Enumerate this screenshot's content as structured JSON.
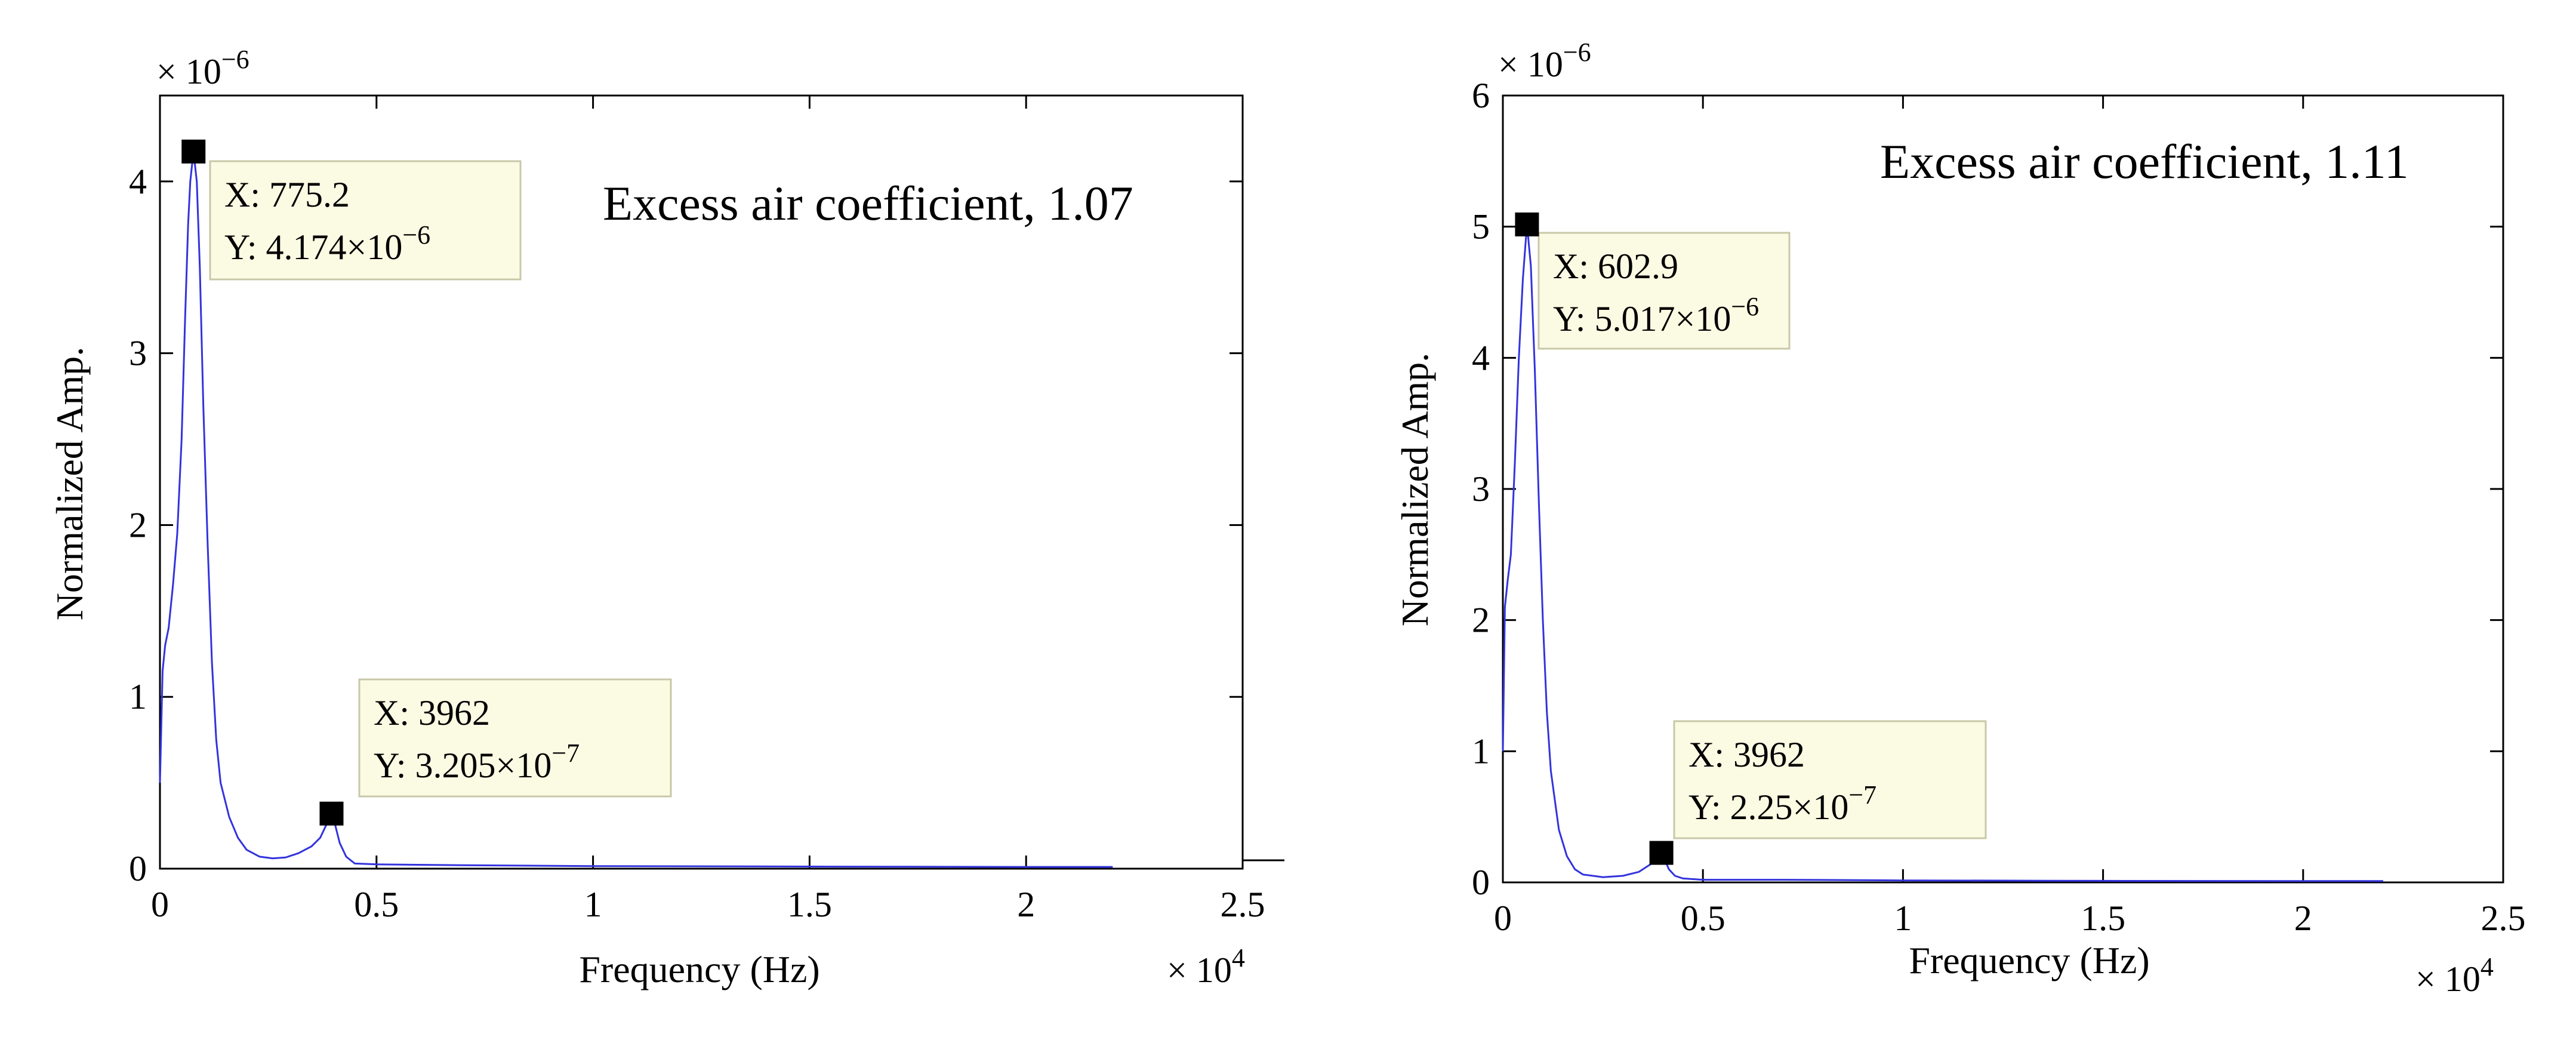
{
  "chart_data": [
    {
      "type": "line",
      "title": "",
      "annotation": "Excess air coefficient, 1.07",
      "xlabel": "Frequency (Hz)",
      "ylabel": "Normalized Amp.",
      "xlim": [
        0,
        2.5
      ],
      "ylim": [
        0,
        4.5
      ],
      "x_multiplier": "× 10",
      "x_multiplier_exp": "4",
      "y_multiplier": "× 10",
      "y_multiplier_exp": "−6",
      "x_ticks": [
        0,
        0.5,
        1,
        1.5,
        2,
        2.5
      ],
      "x_tick_labels": [
        "0",
        "0.5",
        "1",
        "1.5",
        "2",
        "2.5"
      ],
      "y_ticks": [
        0,
        1,
        2,
        3,
        4
      ],
      "y_tick_labels": [
        "0",
        "1",
        "2",
        "3",
        "4"
      ],
      "series": [
        {
          "name": "spectrum",
          "color": "#3333dd",
          "x": [
            0,
            0.006,
            0.012,
            0.02,
            0.03,
            0.04,
            0.05,
            0.058,
            0.065,
            0.07,
            0.0775,
            0.085,
            0.092,
            0.1,
            0.11,
            0.12,
            0.13,
            0.14,
            0.16,
            0.18,
            0.2,
            0.23,
            0.26,
            0.29,
            0.32,
            0.35,
            0.37,
            0.385,
            0.3962,
            0.405,
            0.415,
            0.43,
            0.45,
            0.5,
            0.7,
            1.0,
            1.5,
            2.0,
            2.2
          ],
          "y": [
            0.5,
            1.15,
            1.3,
            1.4,
            1.65,
            1.95,
            2.5,
            3.2,
            3.75,
            4.0,
            4.174,
            4.0,
            3.5,
            2.7,
            1.9,
            1.2,
            0.75,
            0.5,
            0.3,
            0.18,
            0.11,
            0.07,
            0.06,
            0.065,
            0.09,
            0.13,
            0.18,
            0.26,
            0.3205,
            0.25,
            0.15,
            0.07,
            0.03,
            0.025,
            0.02,
            0.015,
            0.012,
            0.01,
            0.01
          ]
        }
      ],
      "datatips": [
        {
          "x": 775.2,
          "x_scaled": 0.07752,
          "y": 4.174,
          "label_x": "X: 775.2",
          "label_y": "Y: 4.174×10",
          "label_y_exp": "−6"
        },
        {
          "x": 3962,
          "x_scaled": 0.3962,
          "y": 0.3205,
          "label_x": "X: 3962",
          "label_y": "Y: 3.205×10",
          "label_y_exp": "−7"
        }
      ]
    },
    {
      "type": "line",
      "title": "",
      "annotation": "Excess air coefficient, 1.11",
      "xlabel": "Frequency (Hz)",
      "ylabel": "Normalized Amp.",
      "xlim": [
        0,
        2.5
      ],
      "ylim": [
        0,
        6
      ],
      "x_multiplier": "× 10",
      "x_multiplier_exp": "4",
      "y_multiplier": "× 10",
      "y_multiplier_exp": "−6",
      "x_ticks": [
        0,
        0.5,
        1,
        1.5,
        2,
        2.5
      ],
      "x_tick_labels": [
        "0",
        "0.5",
        "1",
        "1.5",
        "2",
        "2.5"
      ],
      "y_ticks": [
        0,
        1,
        2,
        3,
        4,
        5,
        6
      ],
      "y_tick_labels": [
        "0",
        "1",
        "2",
        "3",
        "4",
        "5",
        "6"
      ],
      "series": [
        {
          "name": "spectrum",
          "color": "#3333dd",
          "x": [
            0,
            0.005,
            0.012,
            0.02,
            0.03,
            0.04,
            0.05,
            0.0603,
            0.07,
            0.08,
            0.09,
            0.1,
            0.11,
            0.12,
            0.14,
            0.16,
            0.18,
            0.2,
            0.25,
            0.3,
            0.34,
            0.37,
            0.385,
            0.3962,
            0.405,
            0.415,
            0.43,
            0.45,
            0.5,
            0.7,
            1.0,
            1.5,
            2.0,
            2.2
          ],
          "y": [
            1.0,
            2.1,
            2.3,
            2.5,
            3.2,
            4.0,
            4.6,
            5.017,
            4.7,
            3.9,
            2.9,
            2.0,
            1.3,
            0.85,
            0.4,
            0.2,
            0.1,
            0.06,
            0.04,
            0.05,
            0.08,
            0.14,
            0.2,
            0.225,
            0.17,
            0.1,
            0.05,
            0.03,
            0.02,
            0.02,
            0.015,
            0.012,
            0.01,
            0.01
          ]
        }
      ],
      "datatips": [
        {
          "x": 602.9,
          "x_scaled": 0.06029,
          "y": 5.017,
          "label_x": "X: 602.9",
          "label_y": "Y: 5.017×10",
          "label_y_exp": "−6"
        },
        {
          "x": 3962,
          "x_scaled": 0.3962,
          "y": 0.225,
          "label_x": "X: 3962",
          "label_y": "Y: 2.25×10",
          "label_y_exp": "−7"
        }
      ]
    }
  ]
}
